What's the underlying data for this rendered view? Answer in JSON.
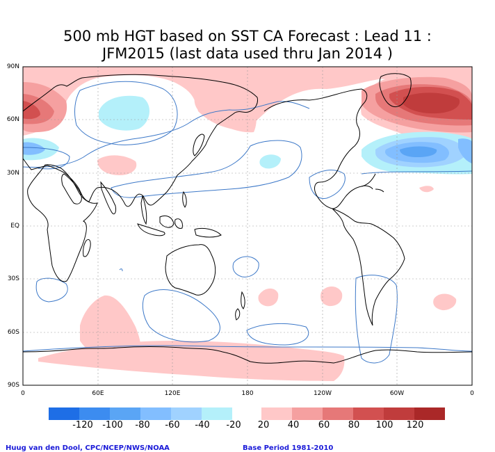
{
  "title": {
    "line1": "500 mb HGT based on SST CA Forecast : Lead 11 :",
    "line2": "JFM2015 (last data used thru Jan 2014 )"
  },
  "map": {
    "lat_labels": [
      "90N",
      "60N",
      "30N",
      "EQ",
      "30S",
      "60S",
      "90S"
    ],
    "lon_labels": [
      "0",
      "60E",
      "120E",
      "180",
      "120W",
      "60W",
      "0"
    ],
    "contour_color": "#3c78c8",
    "coast_color": "#000000",
    "grid_color": "#999999"
  },
  "colorbar": {
    "negative": {
      "colors": [
        "#1e6ee6",
        "#3c8cf0",
        "#5aa5f5",
        "#82beff",
        "#a0d2ff",
        "#b4f0fa"
      ],
      "labels": [
        "-120",
        "-100",
        "-80",
        "-60",
        "-40",
        "-20"
      ]
    },
    "positive": {
      "colors": [
        "#ffc8c8",
        "#f5a0a0",
        "#e67878",
        "#d25050",
        "#c03c3c",
        "#aa2828"
      ],
      "labels": [
        "20",
        "40",
        "60",
        "80",
        "100",
        "120"
      ]
    }
  },
  "footer": {
    "left": "Huug van den Dool, CPC/NCEP/NWS/NOAA",
    "right": "Base Period 1981-2010"
  }
}
